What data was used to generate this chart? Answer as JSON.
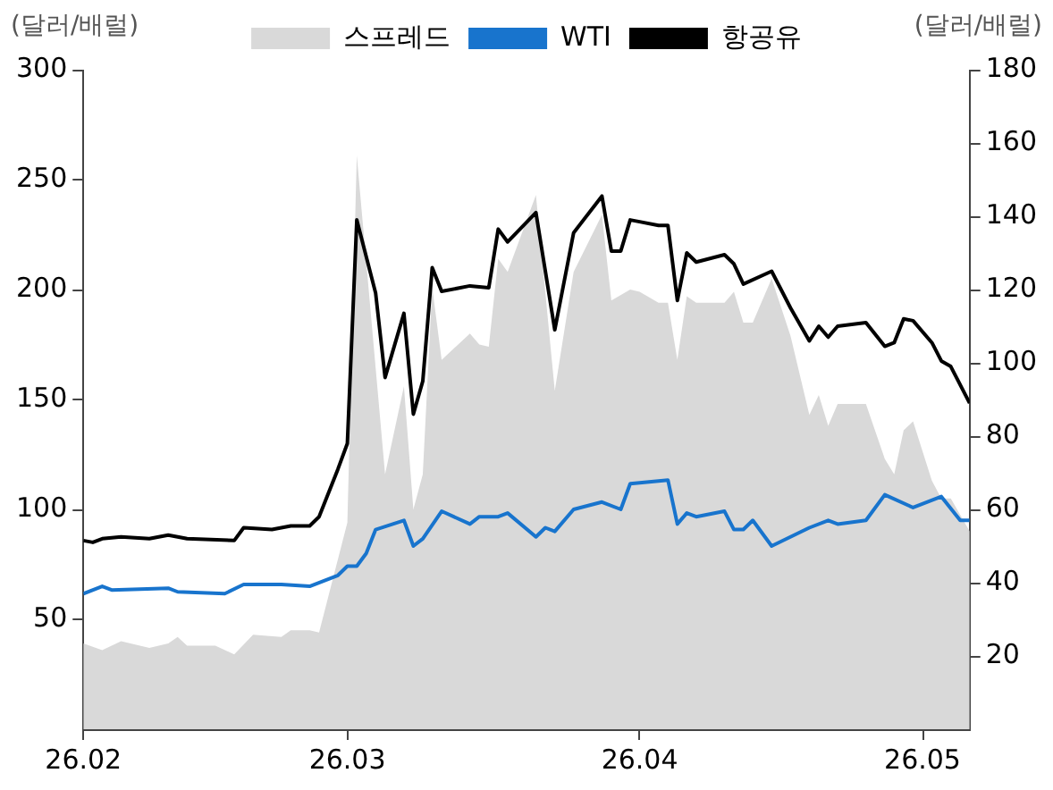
{
  "chart_data": {
    "type": "line",
    "ylabel": "(달러/배럴)",
    "y2label": "(달러/배럴)",
    "xlim": [
      "--02-01",
      "--05-06"
    ],
    "xticks": [
      {
        "value": "--02-01",
        "label": "26.02"
      },
      {
        "value": "--03-01",
        "label": "26.03"
      },
      {
        "value": "--04-01",
        "label": "26.04"
      },
      {
        "value": "--05-01",
        "label": "26.05"
      }
    ],
    "ylim": [
      0,
      300
    ],
    "yticks": [
      50,
      100,
      150,
      200,
      250,
      300
    ],
    "y2lim": [
      0,
      180
    ],
    "y2ticks": [
      20,
      40,
      60,
      80,
      100,
      120,
      140,
      160,
      180
    ],
    "grid": false,
    "legend": "top",
    "marker": "none",
    "series": [
      {
        "name": "스프레드",
        "type": "area",
        "color": "#d9d9d9",
        "x": [
          "--02-01",
          "--02-03",
          "--02-05",
          "--02-08",
          "--02-10",
          "--02-11",
          "--02-12",
          "--02-15",
          "--02-17",
          "--02-19",
          "--02-22",
          "--02-23",
          "--02-25",
          "--02-26",
          "--03-01",
          "--03-02",
          "--03-05",
          "--03-07",
          "--03-08",
          "--03-09",
          "--03-10",
          "--03-11",
          "--03-14",
          "--03-15",
          "--03-16",
          "--03-17",
          "--03-18",
          "--03-21",
          "--03-23",
          "--03-25",
          "--03-28",
          "--03-29",
          "--03-31",
          "--04-01",
          "--04-03",
          "--04-04",
          "--04-05",
          "--04-06",
          "--04-07",
          "--04-10",
          "--04-11",
          "--04-12",
          "--04-13",
          "--04-15",
          "--04-17",
          "--04-19",
          "--04-20",
          "--04-21",
          "--04-22",
          "--04-25",
          "--04-27",
          "--04-28",
          "--04-29",
          "--04-30",
          "--05-02",
          "--05-03",
          "--05-04",
          "--05-06"
        ],
        "values": [
          39,
          36,
          40,
          37,
          39,
          42,
          38,
          38,
          34,
          43,
          42,
          45,
          45,
          44,
          94,
          261,
          116,
          156,
          100,
          116,
          201,
          168,
          180,
          175,
          174,
          214,
          208,
          243,
          154,
          208,
          234,
          195,
          200,
          199,
          194,
          194,
          168,
          197,
          194,
          194,
          199,
          185,
          185,
          205,
          179,
          143,
          152,
          138,
          148,
          148,
          123,
          116,
          136,
          140,
          113,
          105,
          105,
          90
        ]
      },
      {
        "name": "WTI",
        "axis": "y2",
        "color": "#1874cd",
        "x": [
          "--02-01",
          "--02-03",
          "--02-04",
          "--02-10",
          "--02-11",
          "--02-16",
          "--02-18",
          "--02-22",
          "--02-25",
          "--02-28",
          "--03-01",
          "--03-02",
          "--03-03",
          "--03-04",
          "--03-07",
          "--03-08",
          "--03-09",
          "--03-11",
          "--03-14",
          "--03-15",
          "--03-17",
          "--03-18",
          "--03-21",
          "--03-22",
          "--03-23",
          "--03-25",
          "--03-28",
          "--03-30",
          "--03-31",
          "--04-04",
          "--04-05",
          "--04-06",
          "--04-07",
          "--04-10",
          "--04-11",
          "--04-12",
          "--04-13",
          "--04-15",
          "--04-19",
          "--04-21",
          "--04-22",
          "--04-25",
          "--04-27",
          "--04-30",
          "--05-03",
          "--05-05",
          "--05-06"
        ],
        "values": [
          37,
          39,
          38,
          38.5,
          37.5,
          37,
          39.5,
          39.5,
          39,
          42,
          44.5,
          44.5,
          48,
          54.5,
          57,
          50,
          52,
          59.5,
          56,
          58,
          58,
          59,
          52.5,
          55,
          54,
          60,
          62,
          60,
          67,
          68,
          56,
          59,
          58,
          59.5,
          54.5,
          54.5,
          57,
          50,
          55,
          57,
          56,
          57,
          64,
          60.5,
          63.5,
          57,
          57
        ]
      },
      {
        "name": "항공유",
        "axis": "y2",
        "color": "#000000",
        "x": [
          "--02-01",
          "--02-02",
          "--02-03",
          "--02-05",
          "--02-08",
          "--02-10",
          "--02-12",
          "--02-17",
          "--02-18",
          "--02-21",
          "--02-23",
          "--02-25",
          "--02-26",
          "--02-28",
          "--03-01",
          "--03-02",
          "--03-04",
          "--03-05",
          "--03-07",
          "--03-08",
          "--03-09",
          "--03-10",
          "--03-11",
          "--03-14",
          "--03-16",
          "--03-17",
          "--03-18",
          "--03-21",
          "--03-23",
          "--03-25",
          "--03-28",
          "--03-29",
          "--03-30",
          "--03-31",
          "--04-01",
          "--04-03",
          "--04-04",
          "--04-05",
          "--04-06",
          "--04-07",
          "--04-10",
          "--04-11",
          "--04-12",
          "--04-15",
          "--04-17",
          "--04-19",
          "--04-20",
          "--04-21",
          "--04-22",
          "--04-25",
          "--04-27",
          "--04-28",
          "--04-29",
          "--04-30",
          "--05-02",
          "--05-03",
          "--05-04",
          "--05-06"
        ],
        "values": [
          51.5,
          51,
          52,
          52.5,
          52,
          53,
          52,
          51.5,
          55,
          54.5,
          55.5,
          55.5,
          58,
          71,
          78,
          139,
          119,
          96,
          113.5,
          86,
          95,
          126,
          119.5,
          121,
          120.5,
          136.5,
          133,
          141,
          109,
          135.5,
          145.5,
          130.5,
          130.5,
          139,
          138.5,
          137.5,
          137.5,
          117,
          130,
          127.5,
          129.5,
          127,
          121.5,
          125,
          115,
          106,
          110,
          107,
          110,
          111,
          104.5,
          105.5,
          112,
          111.5,
          105.5,
          100.5,
          99,
          89
        ]
      }
    ]
  }
}
